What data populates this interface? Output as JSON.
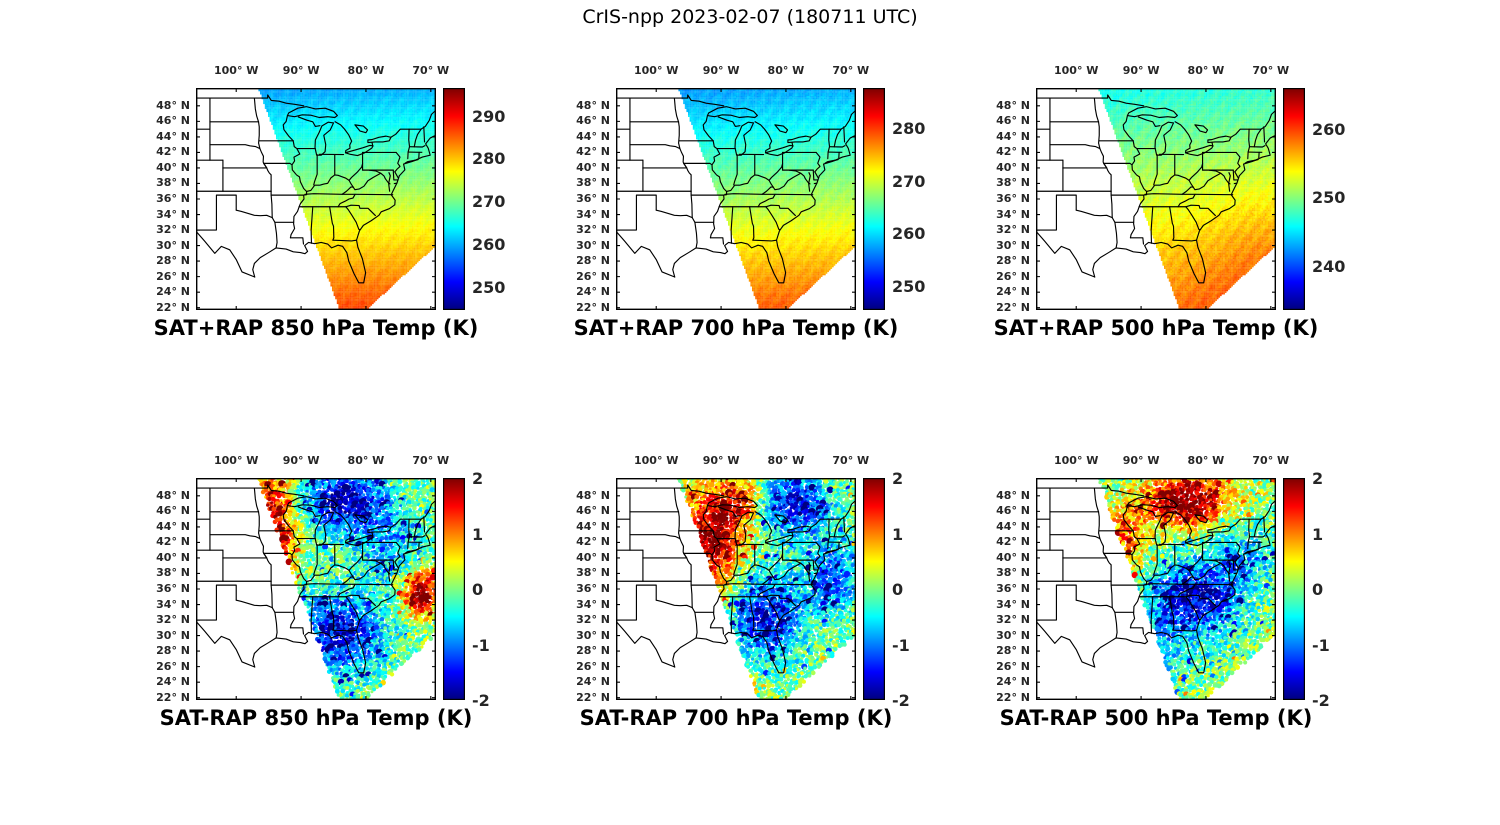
{
  "figure_title": "CrIS-npp 2023-02-07 (180711 UTC)",
  "axes": {
    "x_ticks": [
      {
        "label": "100° W",
        "lon": -100
      },
      {
        "label": "90° W",
        "lon": -90
      },
      {
        "label": "80° W",
        "lon": -80
      },
      {
        "label": "70° W",
        "lon": -70
      }
    ],
    "y_ticks": [
      {
        "label": "48° N",
        "lat": 48
      },
      {
        "label": "46° N",
        "lat": 46
      },
      {
        "label": "44° N",
        "lat": 44
      },
      {
        "label": "42° N",
        "lat": 42
      },
      {
        "label": "40° N",
        "lat": 40
      },
      {
        "label": "38° N",
        "lat": 38
      },
      {
        "label": "36° N",
        "lat": 36
      },
      {
        "label": "34° N",
        "lat": 34
      },
      {
        "label": "32° N",
        "lat": 32
      },
      {
        "label": "30° N",
        "lat": 30
      },
      {
        "label": "28° N",
        "lat": 28
      },
      {
        "label": "26° N",
        "lat": 26
      },
      {
        "label": "24° N",
        "lat": 24
      },
      {
        "label": "22° N",
        "lat": 22
      }
    ]
  },
  "panels": [
    {
      "title": "SAT+RAP 850 hPa Temp (K)",
      "kind": "field",
      "cbar_min": 244.5,
      "cbar_max": 296.5,
      "cbar_ticks": [
        "290",
        "280",
        "270",
        "260",
        "250"
      ]
    },
    {
      "title": "SAT+RAP 700 hPa Temp (K)",
      "kind": "field",
      "cbar_min": 245.5,
      "cbar_max": 287.5,
      "cbar_ticks": [
        "280",
        "270",
        "260",
        "250"
      ]
    },
    {
      "title": "SAT+RAP 500 hPa Temp (K)",
      "kind": "field",
      "cbar_min": 233.5,
      "cbar_max": 266.0,
      "cbar_ticks": [
        "260",
        "250",
        "240"
      ]
    },
    {
      "title": "SAT-RAP 850 hPa Temp (K)",
      "kind": "diff",
      "cbar_min": -2,
      "cbar_max": 2,
      "cbar_ticks": [
        "2",
        "1",
        "0",
        "-1",
        "-2"
      ]
    },
    {
      "title": "SAT-RAP 700 hPa Temp (K)",
      "kind": "diff",
      "cbar_min": -2,
      "cbar_max": 2,
      "cbar_ticks": [
        "2",
        "1",
        "0",
        "-1",
        "-2"
      ]
    },
    {
      "title": "SAT-RAP 500 hPa Temp (K)",
      "kind": "diff",
      "cbar_min": -2,
      "cbar_max": 2,
      "cbar_ticks": [
        "2",
        "1",
        "0",
        "-1",
        "-2"
      ]
    }
  ],
  "chart_data": [
    {
      "type": "heatmap",
      "subtype": "satellite-swath-map",
      "title": "SAT+RAP 850 hPa Temp (K)",
      "variable": "850 hPa temperature (satellite retrieval merged with RAP)",
      "units": "K",
      "colormap": "jet",
      "colorbar_ticks": [
        290,
        280,
        270,
        260,
        250
      ],
      "colorbar_range_approx": [
        245,
        296
      ],
      "lon_ticks_deg_west": [
        100,
        90,
        80,
        70
      ],
      "lat_ticks_deg_north": [
        48,
        46,
        44,
        42,
        40,
        38,
        36,
        34,
        32,
        30,
        28,
        26,
        24,
        22
      ],
      "coverage": "diagonal satellite swath from the upper Midwest/Great Lakes southeast across the Ohio Valley, Southeast and Atlantic seaboard; no data over the western Plains and far southeast corner",
      "values_by_region": [
        {
          "region": "Great Lakes / upper Midwest",
          "approx_K": 258
        },
        {
          "region": "Ohio Valley / Mid-Atlantic",
          "approx_K": 270
        },
        {
          "region": "Southeast / Gulf Coast",
          "approx_K": 282
        }
      ]
    },
    {
      "type": "heatmap",
      "subtype": "satellite-swath-map",
      "title": "SAT+RAP 700 hPa Temp (K)",
      "variable": "700 hPa temperature (satellite retrieval merged with RAP)",
      "units": "K",
      "colormap": "jet",
      "colorbar_ticks": [
        280,
        270,
        260,
        250
      ],
      "colorbar_range_approx": [
        246,
        287
      ],
      "lon_ticks_deg_west": [
        100,
        90,
        80,
        70
      ],
      "lat_ticks_deg_north": [
        48,
        46,
        44,
        42,
        40,
        38,
        36,
        34,
        32,
        30,
        28,
        26,
        24,
        22
      ],
      "coverage": "same diagonal swath as 850 hPa panel",
      "values_by_region": [
        {
          "region": "Great Lakes / upper Midwest",
          "approx_K": 257
        },
        {
          "region": "Ohio Valley / Mid-Atlantic",
          "approx_K": 268
        },
        {
          "region": "Southeast / Gulf Coast",
          "approx_K": 277
        }
      ]
    },
    {
      "type": "heatmap",
      "subtype": "satellite-swath-map",
      "title": "SAT+RAP 500 hPa Temp (K)",
      "variable": "500 hPa temperature (satellite retrieval merged with RAP)",
      "units": "K",
      "colormap": "jet",
      "colorbar_ticks": [
        260,
        250,
        240
      ],
      "colorbar_range_approx": [
        234,
        266
      ],
      "lon_ticks_deg_west": [
        100,
        90,
        80,
        70
      ],
      "lat_ticks_deg_north": [
        48,
        46,
        44,
        42,
        40,
        38,
        36,
        34,
        32,
        30,
        28,
        26,
        24,
        22
      ],
      "coverage": "same diagonal swath; deep orange-red over the far Southeast",
      "values_by_region": [
        {
          "region": "Great Lakes / upper Midwest",
          "approx_K": 247
        },
        {
          "region": "Ohio Valley / Mid-Atlantic",
          "approx_K": 252
        },
        {
          "region": "Southeast / Gulf Coast",
          "approx_K": 260
        }
      ]
    },
    {
      "type": "heatmap",
      "subtype": "satellite-swath-map",
      "title": "SAT-RAP 850 hPa Temp (K)",
      "variable": "850 hPa temperature difference, satellite minus RAP model",
      "units": "K",
      "colormap": "jet",
      "colorbar_ticks": [
        2,
        1,
        0,
        -1,
        -2
      ],
      "colorbar_range": [
        -2,
        2
      ],
      "appearance": "dense speckled point differences within the same swath",
      "values_by_region": [
        {
          "region": "western swath edge over MN/IA/WI",
          "approx_K": 1.7
        },
        {
          "region": "northern Great Lakes and Northeast",
          "approx_K": -1.5
        },
        {
          "region": "central Appalachians to Carolinas",
          "approx_K": -1.5
        },
        {
          "region": "Atlantic coast near 36N",
          "approx_K": 1.8
        },
        {
          "region": "remainder of swath",
          "approx_K": 0
        }
      ]
    },
    {
      "type": "heatmap",
      "subtype": "satellite-swath-map",
      "title": "SAT-RAP 700 hPa Temp (K)",
      "variable": "700 hPa temperature difference, satellite minus RAP model",
      "units": "K",
      "colormap": "jet",
      "colorbar_ticks": [
        2,
        1,
        0,
        -1,
        -2
      ],
      "colorbar_range": [
        -2,
        2
      ],
      "appearance": "dense speckled point differences within the same swath",
      "values_by_region": [
        {
          "region": "upper Mississippi valley / western swath",
          "approx_K": 1.6
        },
        {
          "region": "eastern Great Lakes and Northeast",
          "approx_K": -1.4
        },
        {
          "region": "Ohio Valley to Southeast interior",
          "approx_K": -1.3
        },
        {
          "region": "small spot on central Gulf coast",
          "approx_K": 1.8
        },
        {
          "region": "remainder of swath",
          "approx_K": 0
        }
      ]
    },
    {
      "type": "heatmap",
      "subtype": "satellite-swath-map",
      "title": "SAT-RAP 500 hPa Temp (K)",
      "variable": "500 hPa temperature difference, satellite minus RAP model",
      "units": "K",
      "colormap": "jet",
      "colorbar_ticks": [
        2,
        1,
        0,
        -1,
        -2
      ],
      "colorbar_range": [
        -2,
        2
      ],
      "appearance": "dense speckled point differences within the same swath",
      "values_by_region": [
        {
          "region": "northern Great Lakes (upper MI / WI / Ontario)",
          "approx_K": 1.8
        },
        {
          "region": "Ohio Valley and Mid-Atlantic",
          "approx_K": -1.4
        },
        {
          "region": "Southeast interior",
          "approx_K": -0.9
        },
        {
          "region": "remainder of swath",
          "approx_K": 0
        }
      ]
    }
  ]
}
